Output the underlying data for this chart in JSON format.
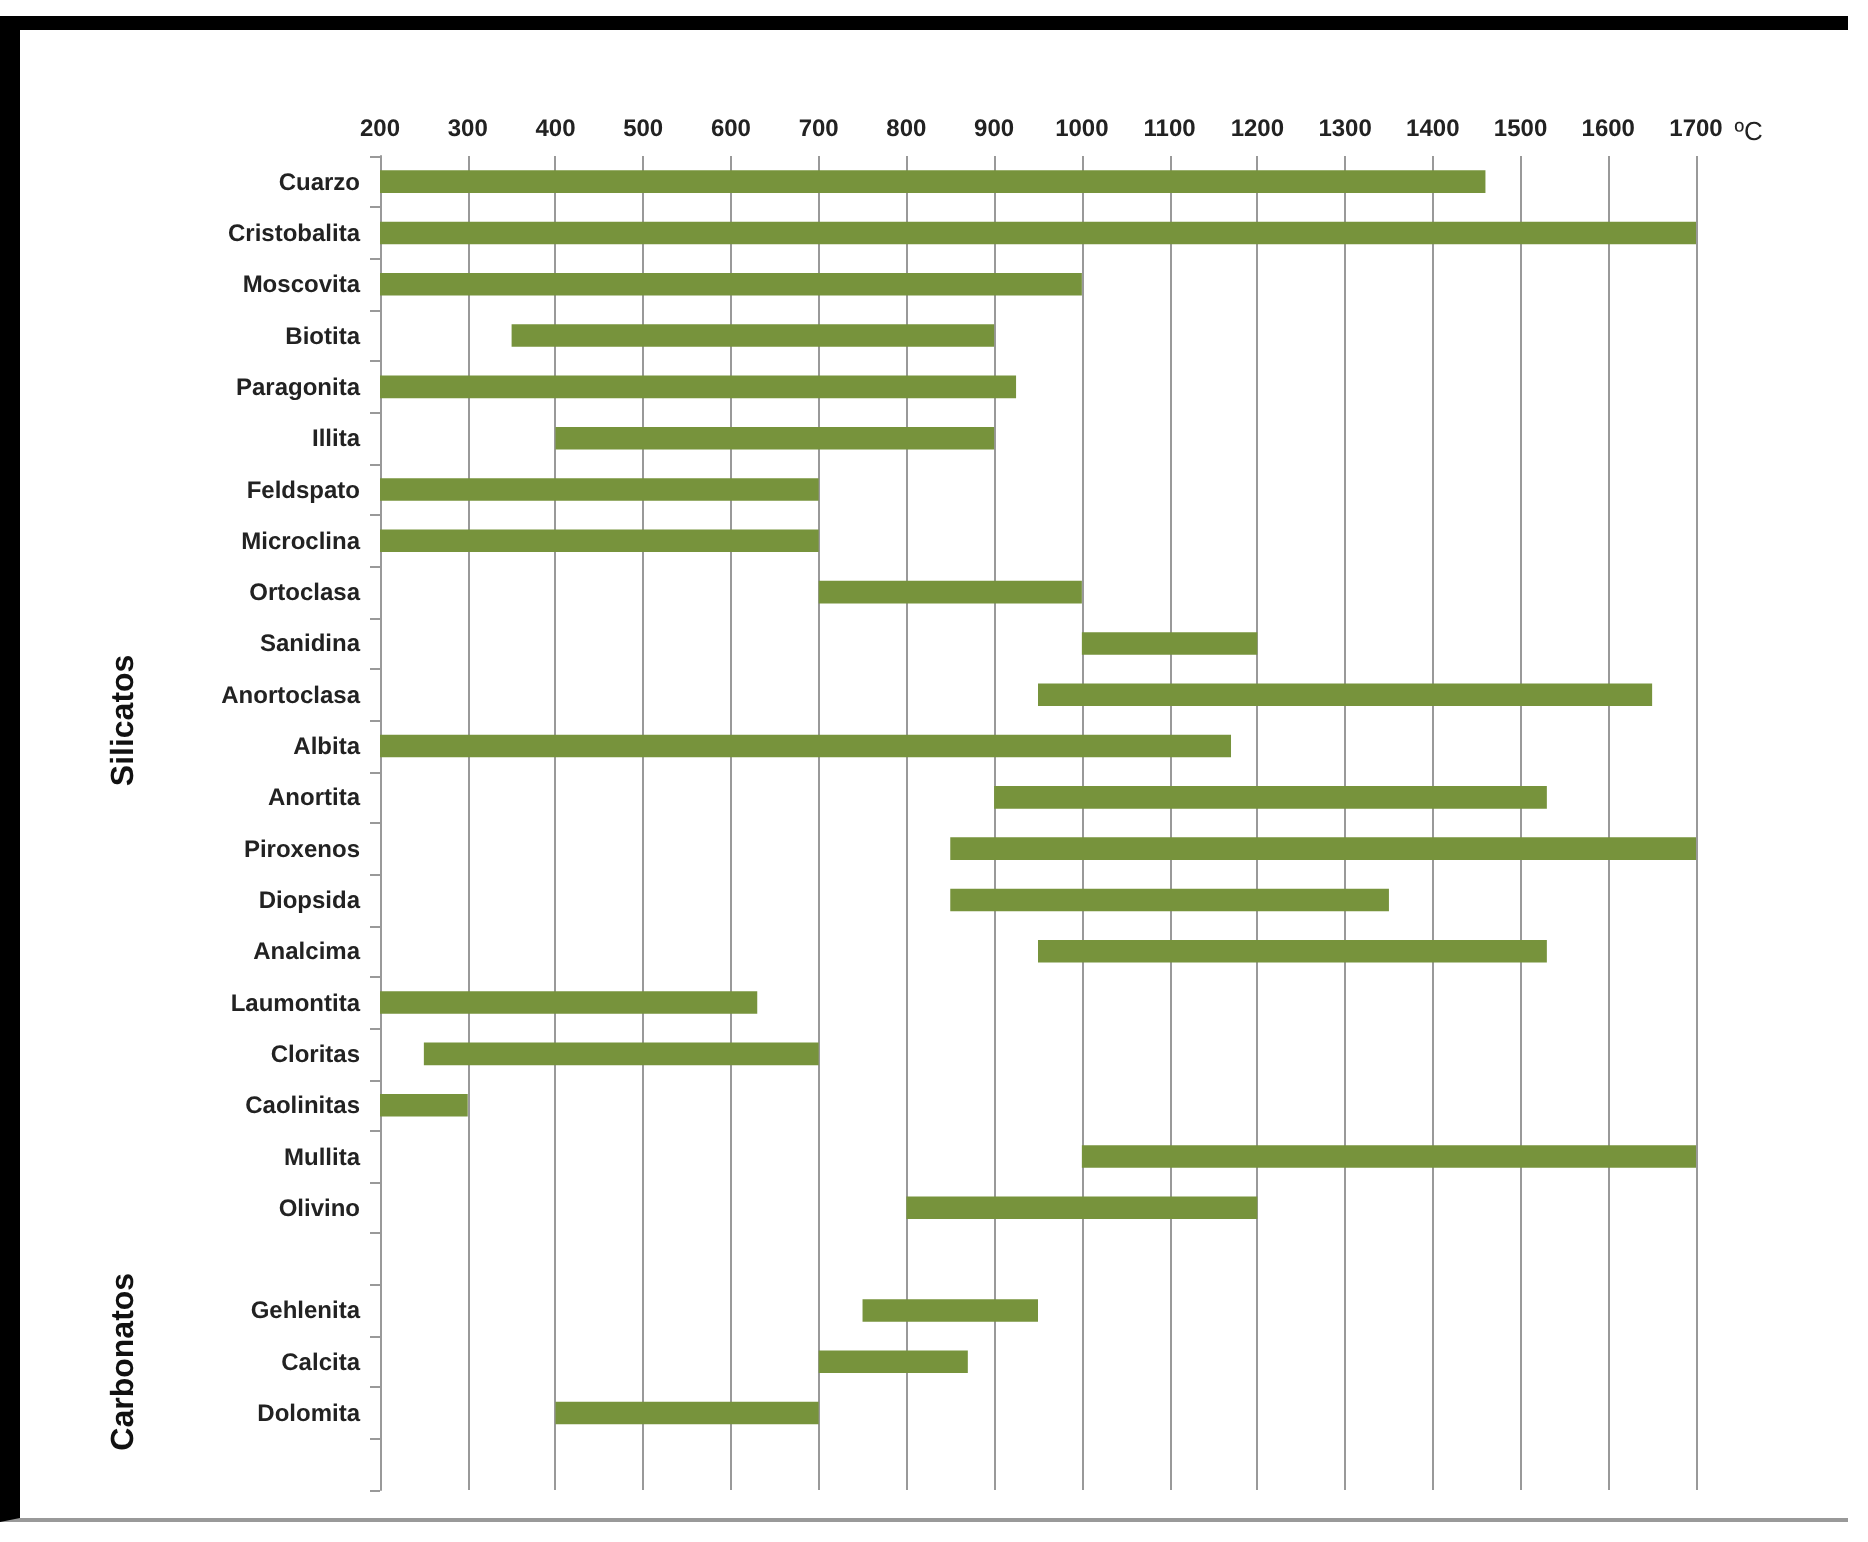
{
  "chart_data": {
    "type": "bar",
    "orientation": "horizontal",
    "xlabel": "ºC",
    "categories": [
      "Cuarzo",
      "Cristobalita",
      "Moscovita",
      "Biotita",
      "Paragonita",
      "Illita",
      "Feldspato",
      "Microclina",
      "Ortoclasa",
      "Sanidina",
      "Anortoclasa",
      "Albita",
      "Anortita",
      "Piroxenos",
      "Diopsida",
      "Analcima",
      "Laumontita",
      "Cloritas",
      "Caolinitas",
      "Mullita",
      "Olivino",
      null,
      "Gehlenita",
      "Calcita",
      "Dolomita",
      null
    ],
    "base": [
      200,
      200,
      200,
      350,
      200,
      400,
      200,
      200,
      700,
      1000,
      950,
      200,
      900,
      850,
      850,
      950,
      200,
      250,
      200,
      1000,
      800,
      null,
      750,
      700,
      400,
      null
    ],
    "values": [
      1260,
      1500,
      800,
      550,
      725,
      500,
      500,
      500,
      300,
      200,
      700,
      970,
      630,
      850,
      500,
      580,
      430,
      450,
      100,
      700,
      400,
      null,
      200,
      170,
      300,
      null
    ],
    "color": "#77933c",
    "xlim": [
      200,
      1700
    ],
    "xticks": [
      200,
      300,
      400,
      500,
      600,
      700,
      800,
      900,
      1000,
      1100,
      1200,
      1300,
      1400,
      1500,
      1600,
      1700
    ],
    "grid": "x",
    "annotations": [
      "Silicatos",
      "Carbonatos"
    ]
  }
}
